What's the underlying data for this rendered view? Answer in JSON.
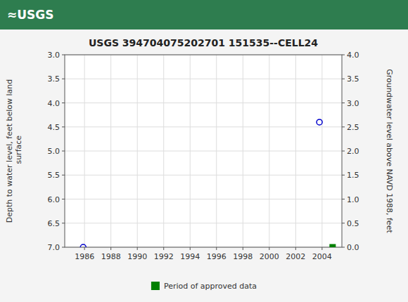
{
  "chart_data": {
    "type": "scatter",
    "title": "USGS 394704075202701 151535--CELL24",
    "annotations": [
      "≈USGS"
    ],
    "ylabel": "Depth to water level, feet below land\n surface",
    "y2label": "Groundwater level above NAVD 1988, feet",
    "xlim": [
      1984.5,
      2005.5
    ],
    "xticks": [
      1986,
      1988,
      1990,
      1992,
      1994,
      1996,
      1998,
      2000,
      2002,
      2004
    ],
    "ylim": [
      7.0,
      3.0
    ],
    "yticks": [
      {
        "value": 3.0,
        "label": "3.0"
      },
      3.5,
      {
        "value": 4.0,
        "label": "4.0"
      },
      4.5,
      {
        "value": 5.0,
        "label": "5.0"
      },
      5.5,
      {
        "value": 6.0,
        "label": "6.0"
      },
      6.5,
      {
        "value": 7.0,
        "label": "7.0"
      }
    ],
    "y2lim": [
      0.0,
      4.0
    ],
    "y2ticks": [
      {
        "value": 4.0,
        "label": "4.0"
      },
      3.5,
      {
        "value": 3.0,
        "label": "3.0"
      },
      2.5,
      {
        "value": 2.0,
        "label": "2.0"
      },
      1.5,
      {
        "value": 1.0,
        "label": "1.0"
      },
      0.5,
      {
        "value": 0.0,
        "label": "0.0"
      }
    ],
    "grid": true,
    "legend": "bottom",
    "series": [
      {
        "color": "#0000cc",
        "marker": "circle",
        "x": [
          1985.9,
          2003.8
        ],
        "values": [
          7.0,
          4.4
        ]
      },
      {
        "name": "Period of approved data",
        "color": "#008000",
        "marker": "square",
        "x": [
          2004.8
        ],
        "values": [
          7.0
        ]
      }
    ]
  }
}
